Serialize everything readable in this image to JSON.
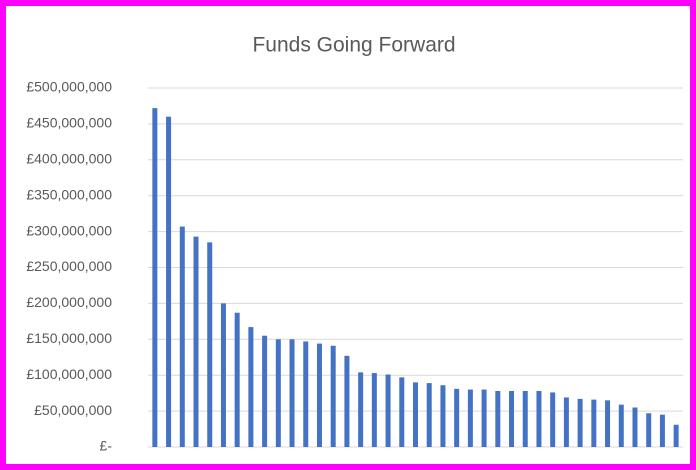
{
  "chart_data": {
    "type": "bar",
    "title": "Funds Going Forward",
    "categories": [
      null,
      null,
      null,
      null,
      null,
      null,
      null,
      null,
      null,
      null,
      null,
      null,
      null,
      null,
      null,
      null,
      null,
      null,
      null,
      null,
      null,
      null,
      null,
      null,
      null,
      null,
      null,
      null,
      null,
      null,
      null,
      null,
      null,
      null,
      null,
      null,
      null,
      null,
      null
    ],
    "values": [
      472000000,
      460000000,
      307000000,
      293000000,
      285000000,
      200000000,
      187000000,
      167000000,
      155000000,
      150000000,
      150000000,
      147000000,
      144000000,
      141000000,
      127000000,
      104000000,
      103000000,
      101000000,
      97000000,
      90000000,
      89000000,
      86000000,
      81000000,
      80000000,
      80000000,
      78000000,
      78000000,
      78000000,
      78000000,
      76000000,
      69000000,
      67000000,
      66000000,
      65000000,
      59000000,
      55000000,
      47000000,
      45000000,
      31000000
    ],
    "color": "#4472c4",
    "ylim": [
      0,
      500000000
    ],
    "yticks": [
      {
        "value": 0,
        "label": "£-"
      },
      {
        "value": 50000000,
        "label": "£50,000,000"
      },
      {
        "value": 100000000,
        "label": "£100,000,000"
      },
      {
        "value": 150000000,
        "label": "£150,000,000"
      },
      {
        "value": 200000000,
        "label": "£200,000,000"
      },
      {
        "value": 250000000,
        "label": "£250,000,000"
      },
      {
        "value": 300000000,
        "label": "£300,000,000"
      },
      {
        "value": 350000000,
        "label": "£350,000,000"
      },
      {
        "value": 400000000,
        "label": "£400,000,000"
      },
      {
        "value": 450000000,
        "label": "£450,000,000"
      },
      {
        "value": 500000000,
        "label": "£500,000,000"
      }
    ],
    "grid": true
  }
}
